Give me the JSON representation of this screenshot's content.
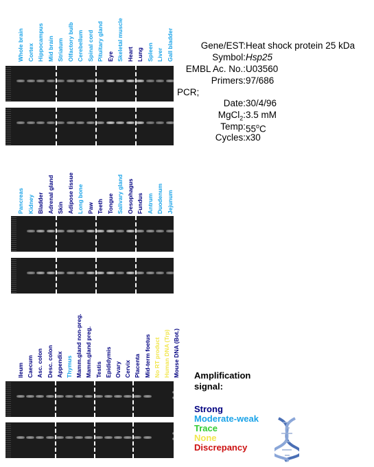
{
  "colors": {
    "strong": "#000080",
    "moderate": "#1aa3e8",
    "trace": "#33cc33",
    "none": "#f2e64d",
    "discrepancy": "#cc1111"
  },
  "info": {
    "gene_key": "Gene/EST:",
    "gene_val": "Heat shock protein 25 kDa",
    "symbol_key": "Symbol:",
    "symbol_val": "Hsp25",
    "embl_key": "EMBL Ac. No.:",
    "embl_val": "U03560",
    "primers_key": "Primers:",
    "primers_val": "97/686",
    "pcr_label": "PCR;",
    "date_key": "Date:",
    "date_val": "30/4/96",
    "mgcl_key": "MgCl",
    "mgcl_sub": "2",
    "mgcl_colon": ":",
    "mgcl_val": "3.5 mM",
    "temp_key": "Temp:",
    "temp_val": "55",
    "temp_sup": "o",
    "temp_unit": "C",
    "cycles_key": "Cycles:",
    "cycles_val": "x30"
  },
  "legend": {
    "title_line1": "Amplification",
    "title_line2": "signal:",
    "strong": "Strong",
    "moderate": "Moderate-weak",
    "trace": "Trace",
    "none": "None",
    "discrepancy": "Discrepancy"
  },
  "panels": [
    {
      "lanes": [
        {
          "label": "Whole brain",
          "signal": "moderate",
          "band": 0.55
        },
        {
          "label": "Cortex",
          "signal": "moderate",
          "band": 0.55
        },
        {
          "label": "Hippocampus",
          "signal": "moderate",
          "band": 0.55
        },
        {
          "label": "Mid brain",
          "signal": "moderate",
          "band": 0.55
        },
        {
          "label": "Striatum",
          "signal": "moderate",
          "band": 0.5
        },
        {
          "label": "Olfactory bulb",
          "signal": "moderate",
          "band": 0.55
        },
        {
          "label": "Cerebellum",
          "signal": "moderate",
          "band": 0.55
        },
        {
          "label": "Spinal cord",
          "signal": "moderate",
          "band": 0.6
        },
        {
          "label": "Pituitary gland",
          "signal": "moderate",
          "band": 0.6
        },
        {
          "label": "Eye",
          "signal": "strong",
          "band": 0.85
        },
        {
          "label": "Skeletal muscle",
          "signal": "moderate",
          "band": 0.75
        },
        {
          "label": "Heart",
          "signal": "strong",
          "band": 0.85
        },
        {
          "label": "Lung",
          "signal": "strong",
          "band": 0.8
        },
        {
          "label": "Spleen",
          "signal": "moderate",
          "band": 0.5
        },
        {
          "label": "Liver",
          "signal": "moderate",
          "band": 0.5
        },
        {
          "label": "Gall bladder",
          "signal": "moderate",
          "band": 0.6
        }
      ]
    },
    {
      "lanes": [
        {
          "label": "Pancreas",
          "signal": "moderate",
          "band": 0.0
        },
        {
          "label": "Kidney",
          "signal": "moderate",
          "band": 0.55
        },
        {
          "label": "Bladder",
          "signal": "strong",
          "band": 0.7
        },
        {
          "label": "Adrenal gland",
          "signal": "strong",
          "band": 0.75
        },
        {
          "label": "Skin",
          "signal": "strong",
          "band": 0.6
        },
        {
          "label": "Adipose tissue",
          "signal": "strong",
          "band": 0.6
        },
        {
          "label": "Long bone",
          "signal": "moderate",
          "band": 0.55
        },
        {
          "label": "Paw",
          "signal": "strong",
          "band": 0.8
        },
        {
          "label": "Teeth",
          "signal": "strong",
          "band": 0.8
        },
        {
          "label": "Tongue",
          "signal": "strong",
          "band": 0.8
        },
        {
          "label": "Salivary gland",
          "signal": "moderate",
          "band": 0.55
        },
        {
          "label": "Oesophagus",
          "signal": "strong",
          "band": 0.85
        },
        {
          "label": "Fundus",
          "signal": "strong",
          "band": 0.6
        },
        {
          "label": "Antrum",
          "signal": "moderate",
          "band": 0.6
        },
        {
          "label": "Duodenum",
          "signal": "moderate",
          "band": 0.55
        },
        {
          "label": "Jejunum",
          "signal": "moderate",
          "band": 0.55
        }
      ]
    },
    {
      "lanes": [
        {
          "label": "Ileum",
          "signal": "strong",
          "band": 0.6
        },
        {
          "label": "Caecum",
          "signal": "strong",
          "band": 0.6
        },
        {
          "label": "Asc. colon",
          "signal": "strong",
          "band": 0.6
        },
        {
          "label": "Desc. colon",
          "signal": "strong",
          "band": 0.6
        },
        {
          "label": "Appendix",
          "signal": "strong",
          "band": 0.6
        },
        {
          "label": "Thymus",
          "signal": "moderate",
          "band": 0.55
        },
        {
          "label": "Mamm.gland non-preg.",
          "signal": "strong",
          "band": 0.6
        },
        {
          "label": "Mamm.gland preg.",
          "signal": "strong",
          "band": 0.6
        },
        {
          "label": "Testis",
          "signal": "strong",
          "band": 0.6
        },
        {
          "label": "Epididymis",
          "signal": "strong",
          "band": 0.6
        },
        {
          "label": "Ovary",
          "signal": "strong",
          "band": 0.6
        },
        {
          "label": "Cervix",
          "signal": "strong",
          "band": 0.6
        },
        {
          "label": "Placenta",
          "signal": "strong",
          "band": 0.6
        },
        {
          "label": "Mid-term foetus",
          "signal": "strong",
          "band": 0.6
        },
        {
          "label": "No RT product",
          "signal": "none",
          "band": 0.0
        },
        {
          "label": "Human DNA (Trp)",
          "signal": "none",
          "band": 0.0
        },
        {
          "label": "Mouse DNA (Bot.)",
          "signal": "strong",
          "band": 0.0
        }
      ]
    }
  ]
}
